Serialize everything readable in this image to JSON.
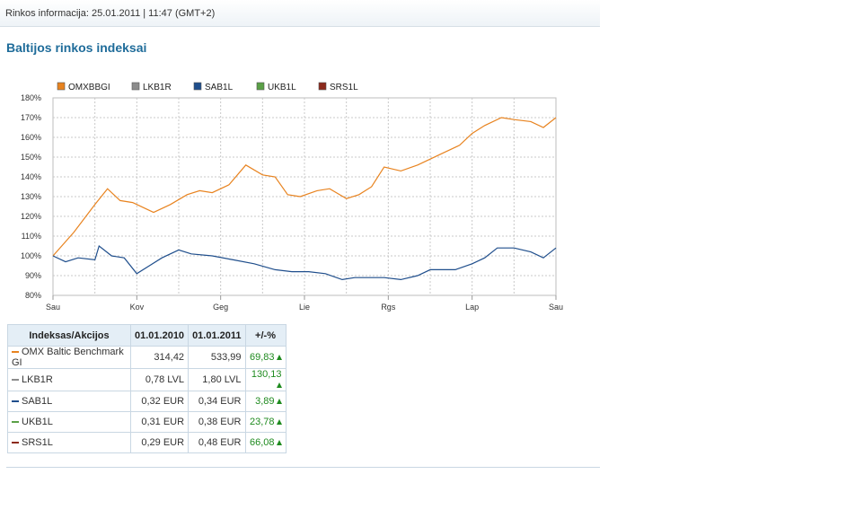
{
  "header": {
    "info": "Rinkos informacija: 25.01.2011 | 11:47 (GMT+2)"
  },
  "page_title": "Baltijos rinkos indeksai",
  "chart_data": {
    "type": "line",
    "legend": [
      "OMXBBGI",
      "LKB1R",
      "SAB1L",
      "UKB1L",
      "SRS1L"
    ],
    "legend_colors": [
      "#e8831f",
      "#8c8c8c",
      "#1f4e8c",
      "#5aa046",
      "#8c2a1c"
    ],
    "legend_position": "top",
    "x_ticks": [
      "Sau",
      "Kov",
      "Geg",
      "Lie",
      "Rgs",
      "Lap",
      "Sau"
    ],
    "y_ticks": [
      "80%",
      "90%",
      "100%",
      "110%",
      "120%",
      "130%",
      "140%",
      "150%",
      "160%",
      "170%",
      "180%"
    ],
    "ylim": [
      80,
      180
    ],
    "grid": true,
    "series": [
      {
        "name": "OMXBBGI",
        "color": "#e8831f",
        "x": [
          0,
          0.5,
          1,
          1.3,
          1.6,
          1.9,
          2.2,
          2.4,
          2.8,
          3.2,
          3.5,
          3.8,
          4.2,
          4.6,
          5.0,
          5.3,
          5.6,
          5.9,
          6.3,
          6.6,
          7.0,
          7.3,
          7.6,
          7.9,
          8.3,
          8.7,
          9.0,
          9.3,
          9.7,
          10.0,
          10.3,
          10.7,
          11.0,
          11.4,
          11.7,
          12.0
        ],
        "y": [
          100,
          112,
          126,
          134,
          128,
          127,
          124,
          122,
          126,
          131,
          133,
          132,
          136,
          146,
          141,
          140,
          131,
          130,
          133,
          134,
          129,
          131,
          135,
          145,
          143,
          146,
          149,
          152,
          156,
          162,
          166,
          170,
          169,
          168,
          165,
          170
        ]
      },
      {
        "name": "SAB1L",
        "color": "#1f4e8c",
        "x": [
          0,
          0.3,
          0.6,
          1.0,
          1.1,
          1.4,
          1.7,
          2.0,
          2.3,
          2.6,
          3.0,
          3.3,
          3.8,
          4.3,
          4.8,
          5.3,
          5.7,
          6.1,
          6.5,
          6.9,
          7.2,
          7.5,
          7.9,
          8.3,
          8.7,
          9.0,
          9.3,
          9.6,
          10.0,
          10.3,
          10.6,
          11.0,
          11.4,
          11.7,
          12.0
        ],
        "y": [
          100,
          97,
          99,
          98,
          105,
          100,
          99,
          91,
          95,
          99,
          103,
          101,
          100,
          98,
          96,
          93,
          92,
          92,
          91,
          88,
          89,
          89,
          89,
          88,
          90,
          93,
          93,
          93,
          96,
          99,
          104,
          104,
          102,
          99,
          104
        ]
      }
    ]
  },
  "table": {
    "headers": [
      "Indeksas/Akcijos",
      "01.01.2010",
      "01.01.2011",
      "+/-%"
    ],
    "rows": [
      {
        "name": "OMX Baltic Benchmark GI",
        "color": "#e8831f",
        "v2010": "314,42",
        "v2011": "533,99",
        "change": "69,83"
      },
      {
        "name": "LKB1R",
        "color": "#8c8c8c",
        "v2010": "0,78 LVL",
        "v2011": "1,80 LVL",
        "change": "130,13"
      },
      {
        "name": "SAB1L",
        "color": "#1f4e8c",
        "v2010": "0,32 EUR",
        "v2011": "0,34 EUR",
        "change": "3,89"
      },
      {
        "name": "UKB1L",
        "color": "#5aa046",
        "v2010": "0,31 EUR",
        "v2011": "0,38 EUR",
        "change": "23,78"
      },
      {
        "name": "SRS1L",
        "color": "#8c2a1c",
        "v2010": "0,29 EUR",
        "v2011": "0,48 EUR",
        "change": "66,08"
      }
    ]
  }
}
